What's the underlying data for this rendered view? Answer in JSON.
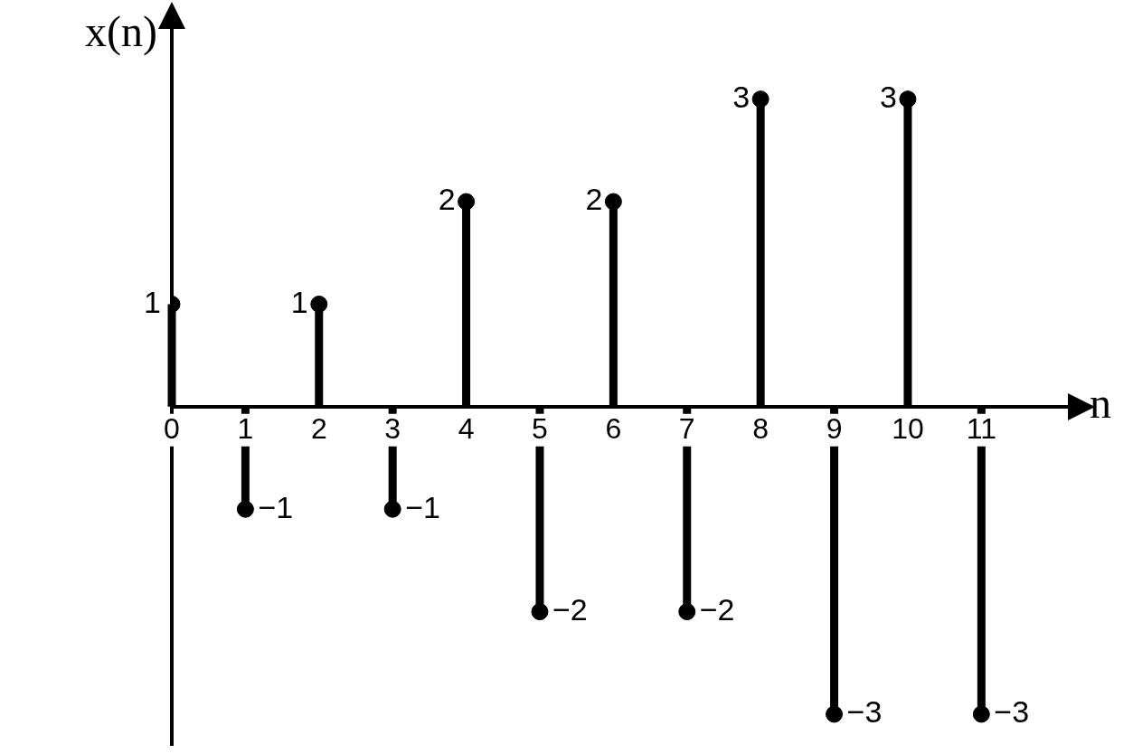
{
  "chart_data": {
    "type": "lollipop",
    "xlabel": "n",
    "ylabel": "x(n)",
    "x": [
      0,
      1,
      2,
      3,
      4,
      5,
      6,
      7,
      8,
      9,
      10,
      11
    ],
    "values": [
      1,
      -1,
      1,
      -1,
      2,
      -2,
      2,
      -2,
      3,
      -3,
      3,
      -3
    ],
    "color": "#000000",
    "marker": "circle",
    "data_labels": true,
    "grid": false,
    "legend": false,
    "tick_labels": "x",
    "xlim": [
      0,
      12.2
    ],
    "xticks": [
      0,
      1,
      2,
      3,
      4,
      5,
      6,
      7,
      8,
      9,
      10,
      11
    ]
  }
}
